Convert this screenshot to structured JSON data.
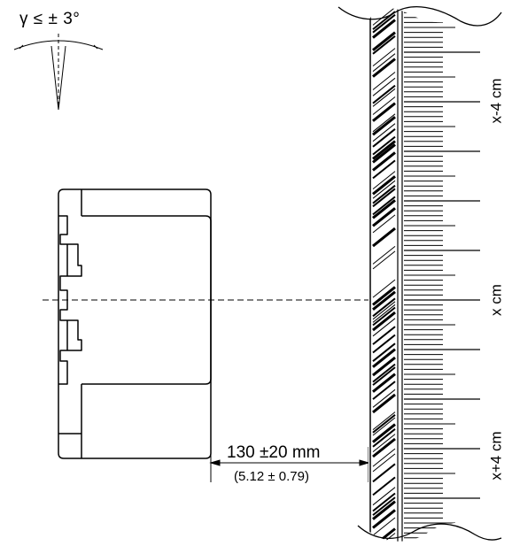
{
  "angle_tolerance": "γ ≤ ± 3°",
  "distance_mm": "130  ±20 mm",
  "distance_inch": "(5.12 ± 0.79)",
  "scale_marks": {
    "top": "x-4 cm",
    "middle": "x cm",
    "bottom": "x+4 cm"
  },
  "colors": {
    "line": "#000000",
    "background": "#ffffff"
  }
}
